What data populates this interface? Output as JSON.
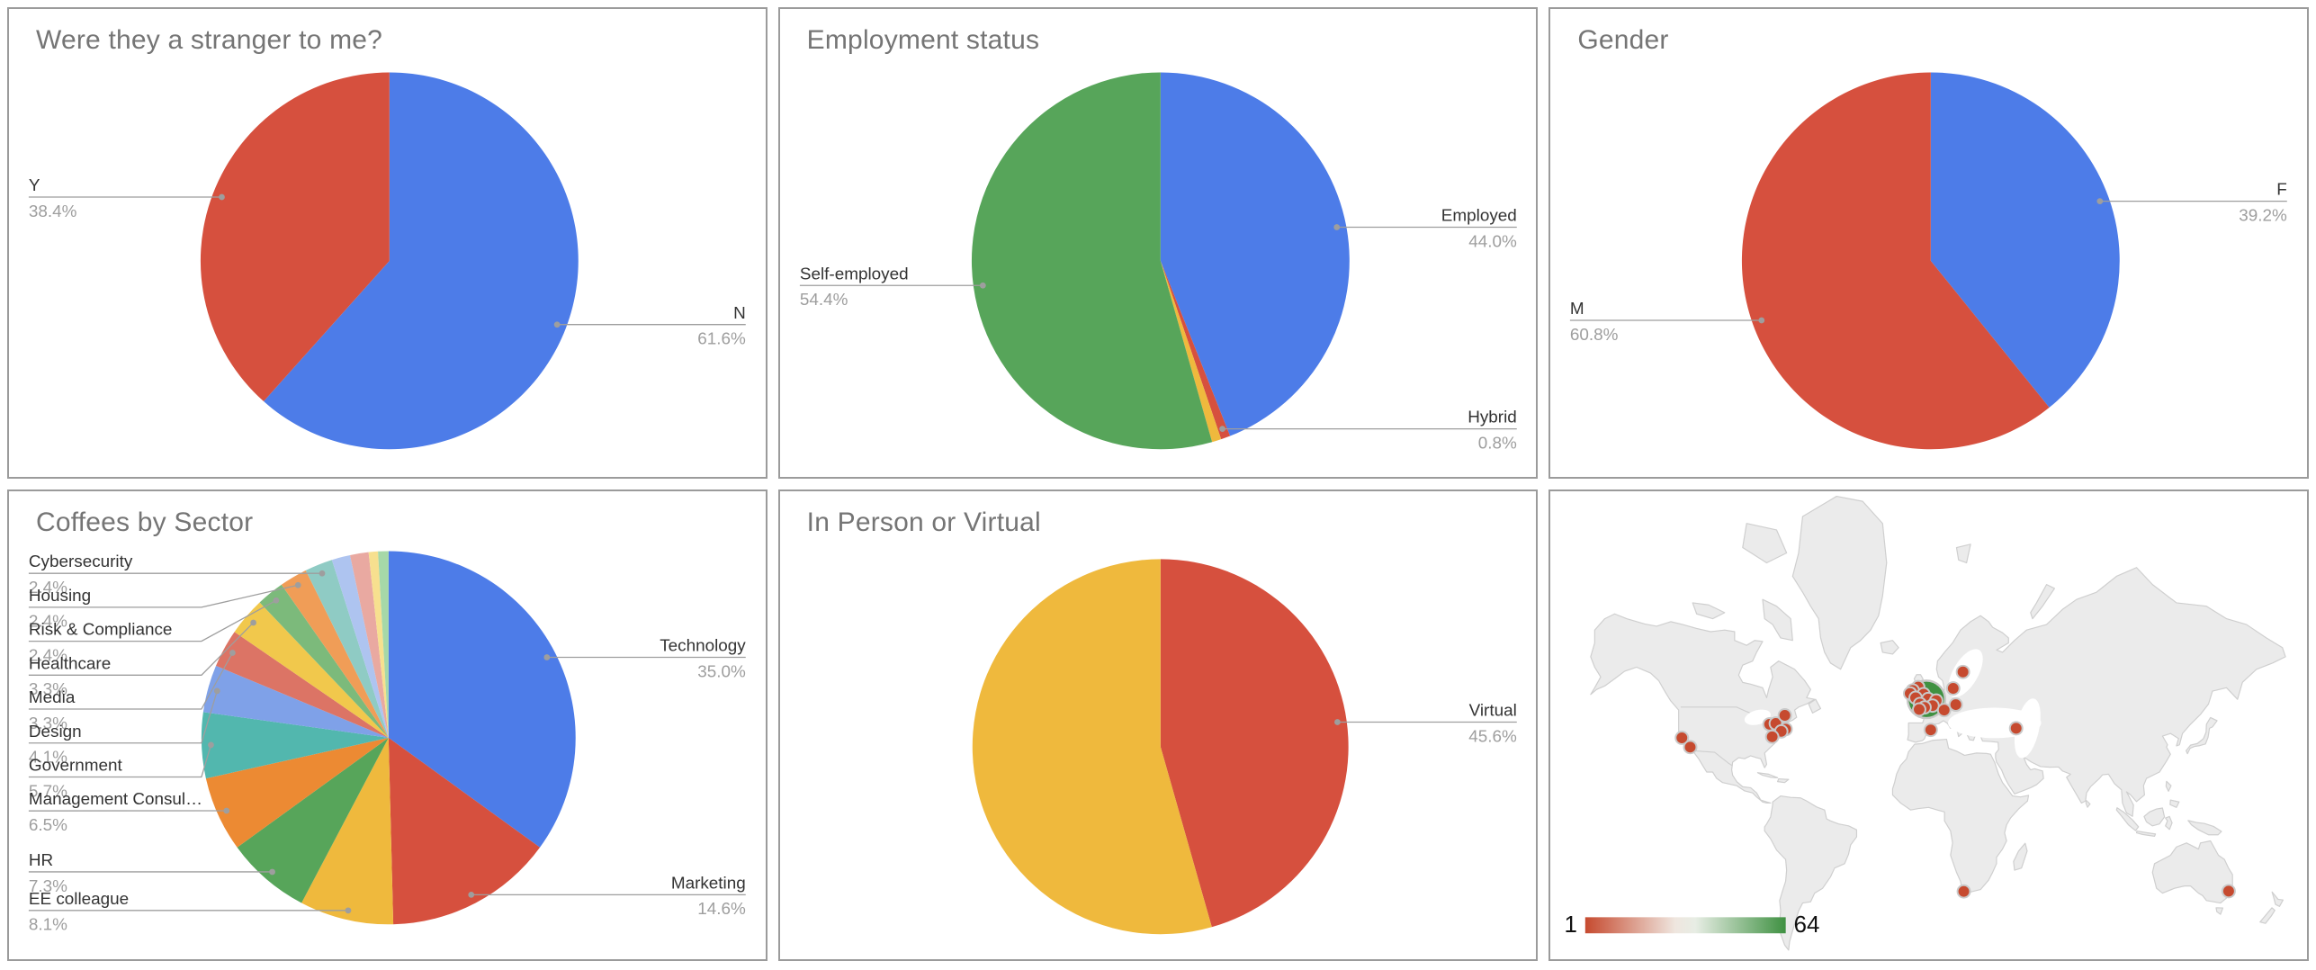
{
  "palette": {
    "blue": "#4D7CE8",
    "red": "#D6503E",
    "yellow": "#EFB93D",
    "green": "#57A55A",
    "orange": "#EC8A33",
    "teal": "#52B7AE",
    "blue2": "#7FA1E8",
    "salmon": "#DC7465",
    "yellow2": "#F1C84C",
    "green2": "#7CBA7B",
    "orange2": "#F09D57",
    "teal2": "#8FCBC4",
    "blue3": "#AEC4F0",
    "pink": "#E9A9A1",
    "yellow3": "#F7E08F",
    "green3": "#A6D8A8"
  },
  "map_colors": {
    "land": "#EBEBEB",
    "border": "#CFCFCF",
    "ocean": "#FFFFFF",
    "marker_low": "#C64A2F",
    "marker_high": "#3F9142",
    "marker_ring": "#C9C9C9"
  },
  "charts": [
    {
      "type": "pie",
      "title": "Were they a stranger to me?",
      "slices": [
        {
          "label": "N",
          "value": 61.6,
          "pct": "61.6%",
          "color": "blue"
        },
        {
          "label": "Y",
          "value": 38.4,
          "pct": "38.4%",
          "color": "red"
        }
      ]
    },
    {
      "type": "pie",
      "title": "Employment status",
      "slices": [
        {
          "label": "Employed",
          "value": 44.0,
          "pct": "44.0%",
          "color": "blue"
        },
        {
          "label": "Hybrid",
          "value": 0.8,
          "pct": "0.8%",
          "color": "red"
        },
        {
          "label": "",
          "value": 0.8,
          "pct": "0.8%",
          "color": "yellow",
          "label_hidden": true
        },
        {
          "label": "Self-employed",
          "value": 54.4,
          "pct": "54.4%",
          "color": "green"
        }
      ]
    },
    {
      "type": "pie",
      "title": "Gender",
      "slices": [
        {
          "label": "F",
          "value": 39.2,
          "pct": "39.2%",
          "color": "blue"
        },
        {
          "label": "M",
          "value": 60.8,
          "pct": "60.8%",
          "color": "red"
        }
      ]
    },
    {
      "type": "pie",
      "title": "Coffees by Sector",
      "slices": [
        {
          "label": "Technology",
          "value": 35.0,
          "pct": "35.0%",
          "color": "blue"
        },
        {
          "label": "Marketing",
          "value": 14.6,
          "pct": "14.6%",
          "color": "red"
        },
        {
          "label": "EE colleague",
          "value": 8.1,
          "pct": "8.1%",
          "color": "yellow"
        },
        {
          "label": "HR",
          "value": 7.3,
          "pct": "7.3%",
          "color": "green"
        },
        {
          "label": "Management Consul…",
          "value": 6.5,
          "pct": "6.5%",
          "color": "orange"
        },
        {
          "label": "Government",
          "value": 5.7,
          "pct": "5.7%",
          "color": "teal"
        },
        {
          "label": "Design",
          "value": 4.1,
          "pct": "4.1%",
          "color": "blue2"
        },
        {
          "label": "Media",
          "value": 3.3,
          "pct": "3.3%",
          "color": "salmon"
        },
        {
          "label": "Healthcare",
          "value": 3.3,
          "pct": "3.3%",
          "color": "yellow2"
        },
        {
          "label": "Risk & Compliance",
          "value": 2.4,
          "pct": "2.4%",
          "color": "green2"
        },
        {
          "label": "Housing",
          "value": 2.4,
          "pct": "2.4%",
          "color": "orange2"
        },
        {
          "label": "Cybersecurity",
          "value": 2.4,
          "pct": "2.4%",
          "color": "teal2"
        },
        {
          "label": "",
          "value": 1.6,
          "pct": "1.6%",
          "color": "blue3",
          "label_hidden": true
        },
        {
          "label": "",
          "value": 1.6,
          "pct": "1.6%",
          "color": "pink",
          "label_hidden": true
        },
        {
          "label": "",
          "value": 0.8,
          "pct": "0.8%",
          "color": "yellow3",
          "label_hidden": true
        },
        {
          "label": "",
          "value": 0.9,
          "pct": "0.9%",
          "color": "green3",
          "label_hidden": true
        }
      ]
    },
    {
      "type": "pie",
      "title": "In Person or Virtual",
      "slices": [
        {
          "label": "Virtual",
          "value": 45.6,
          "pct": "45.6%",
          "color": "red"
        },
        {
          "label": "",
          "value": 54.4,
          "pct": "54.4%",
          "color": "yellow",
          "label_hidden": true
        }
      ]
    },
    {
      "type": "geo",
      "title": "",
      "legend": {
        "min": "1",
        "max": "64"
      },
      "markers": {
        "high": [
          {
            "lat": 51.5,
            "lon": -0.1
          }
        ],
        "low": [
          {
            "lat": 55.2,
            "lon": -4.2
          },
          {
            "lat": 54.2,
            "lon": -6.9
          },
          {
            "lat": 53.3,
            "lon": -8.2
          },
          {
            "lat": 53.1,
            "lon": -1.5
          },
          {
            "lat": 52.0,
            "lon": -5.5
          },
          {
            "lat": 51.6,
            "lon": 0.8
          },
          {
            "lat": 51.1,
            "lon": 4.8
          },
          {
            "lat": 50.0,
            "lon": -3.3
          },
          {
            "lat": 49.5,
            "lon": 3.0
          },
          {
            "lat": 48.9,
            "lon": -1.0
          },
          {
            "lat": 48.2,
            "lon": -3.7
          },
          {
            "lat": 48.0,
            "lon": 8.8
          },
          {
            "lat": 59.3,
            "lon": 18.2
          },
          {
            "lat": 54.8,
            "lon": 13.3
          },
          {
            "lat": 49.8,
            "lon": 14.6
          },
          {
            "lat": 40.9,
            "lon": 2.1
          },
          {
            "lat": 41.5,
            "lon": 44.8
          },
          {
            "lat": 37.8,
            "lon": -122.4
          },
          {
            "lat": 34.0,
            "lon": -118.2
          },
          {
            "lat": 43.0,
            "lon": -78.5
          },
          {
            "lat": 43.3,
            "lon": -75.4
          },
          {
            "lat": 46.2,
            "lon": -70.9
          },
          {
            "lat": 41.2,
            "lon": -70.5
          },
          {
            "lat": 40.3,
            "lon": -72.7
          },
          {
            "lat": 38.2,
            "lon": -77.2
          },
          {
            "lat": -34.3,
            "lon": 18.6
          },
          {
            "lat": -34.2,
            "lon": 151.1
          }
        ]
      }
    }
  ]
}
